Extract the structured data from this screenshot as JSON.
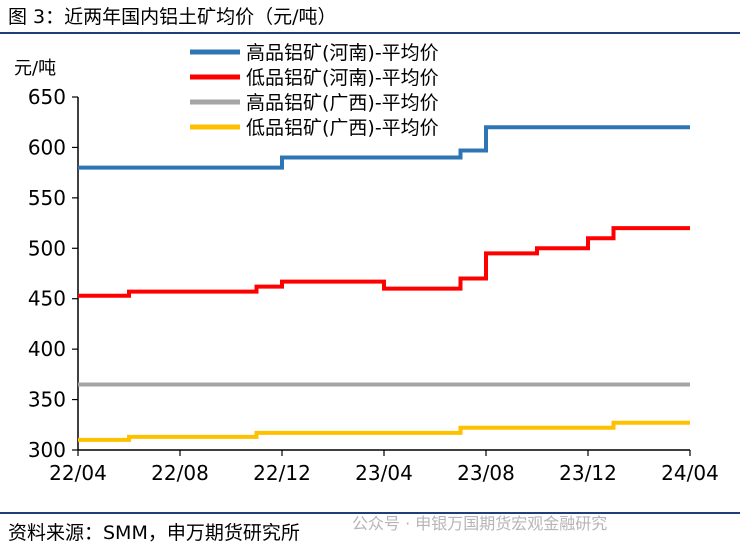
{
  "header": {
    "title": "图 3：近两年国内铝土矿均价（元/吨）"
  },
  "footer": {
    "source": "资料来源：SMM，申万期货研究所",
    "watermark": "公众号 · 申银万国期货宏观金融研究"
  },
  "chart_data": {
    "type": "line",
    "step": true,
    "title": "",
    "xlabel": "",
    "ylabel": "元/吨",
    "ylim": [
      300,
      650
    ],
    "yticks": [
      300,
      350,
      400,
      450,
      500,
      550,
      600,
      650
    ],
    "xticks": [
      "22/04",
      "22/08",
      "22/12",
      "23/04",
      "23/08",
      "23/12",
      "24/04"
    ],
    "xrange": [
      "22/04",
      "24/04"
    ],
    "grid": false,
    "legend_position": "top-right",
    "series": [
      {
        "name": "高品铝矿(河南)-平均价",
        "color": "#2e75b6",
        "points": [
          [
            "22/04",
            580
          ],
          [
            "22/12",
            590
          ],
          [
            "23/07",
            597
          ],
          [
            "23/08",
            620
          ],
          [
            "24/04",
            620
          ]
        ]
      },
      {
        "name": "低品铝矿(河南)-平均价",
        "color": "#ff0000",
        "points": [
          [
            "22/04",
            453
          ],
          [
            "22/06",
            457
          ],
          [
            "22/11",
            462
          ],
          [
            "22/12",
            467
          ],
          [
            "23/04",
            460
          ],
          [
            "23/07",
            470
          ],
          [
            "23/08",
            490
          ],
          [
            "23/08",
            495
          ],
          [
            "23/10",
            500
          ],
          [
            "23/12",
            510
          ],
          [
            "24/01",
            520
          ],
          [
            "24/04",
            520
          ]
        ]
      },
      {
        "name": "高品铝矿(广西)-平均价",
        "color": "#a5a5a5",
        "points": [
          [
            "22/04",
            365
          ],
          [
            "24/04",
            365
          ]
        ]
      },
      {
        "name": "低品铝矿(广西)-平均价",
        "color": "#ffc000",
        "points": [
          [
            "22/04",
            310
          ],
          [
            "22/06",
            313
          ],
          [
            "22/11",
            317
          ],
          [
            "23/07",
            322
          ],
          [
            "24/01",
            327
          ],
          [
            "24/04",
            327
          ]
        ]
      }
    ]
  }
}
